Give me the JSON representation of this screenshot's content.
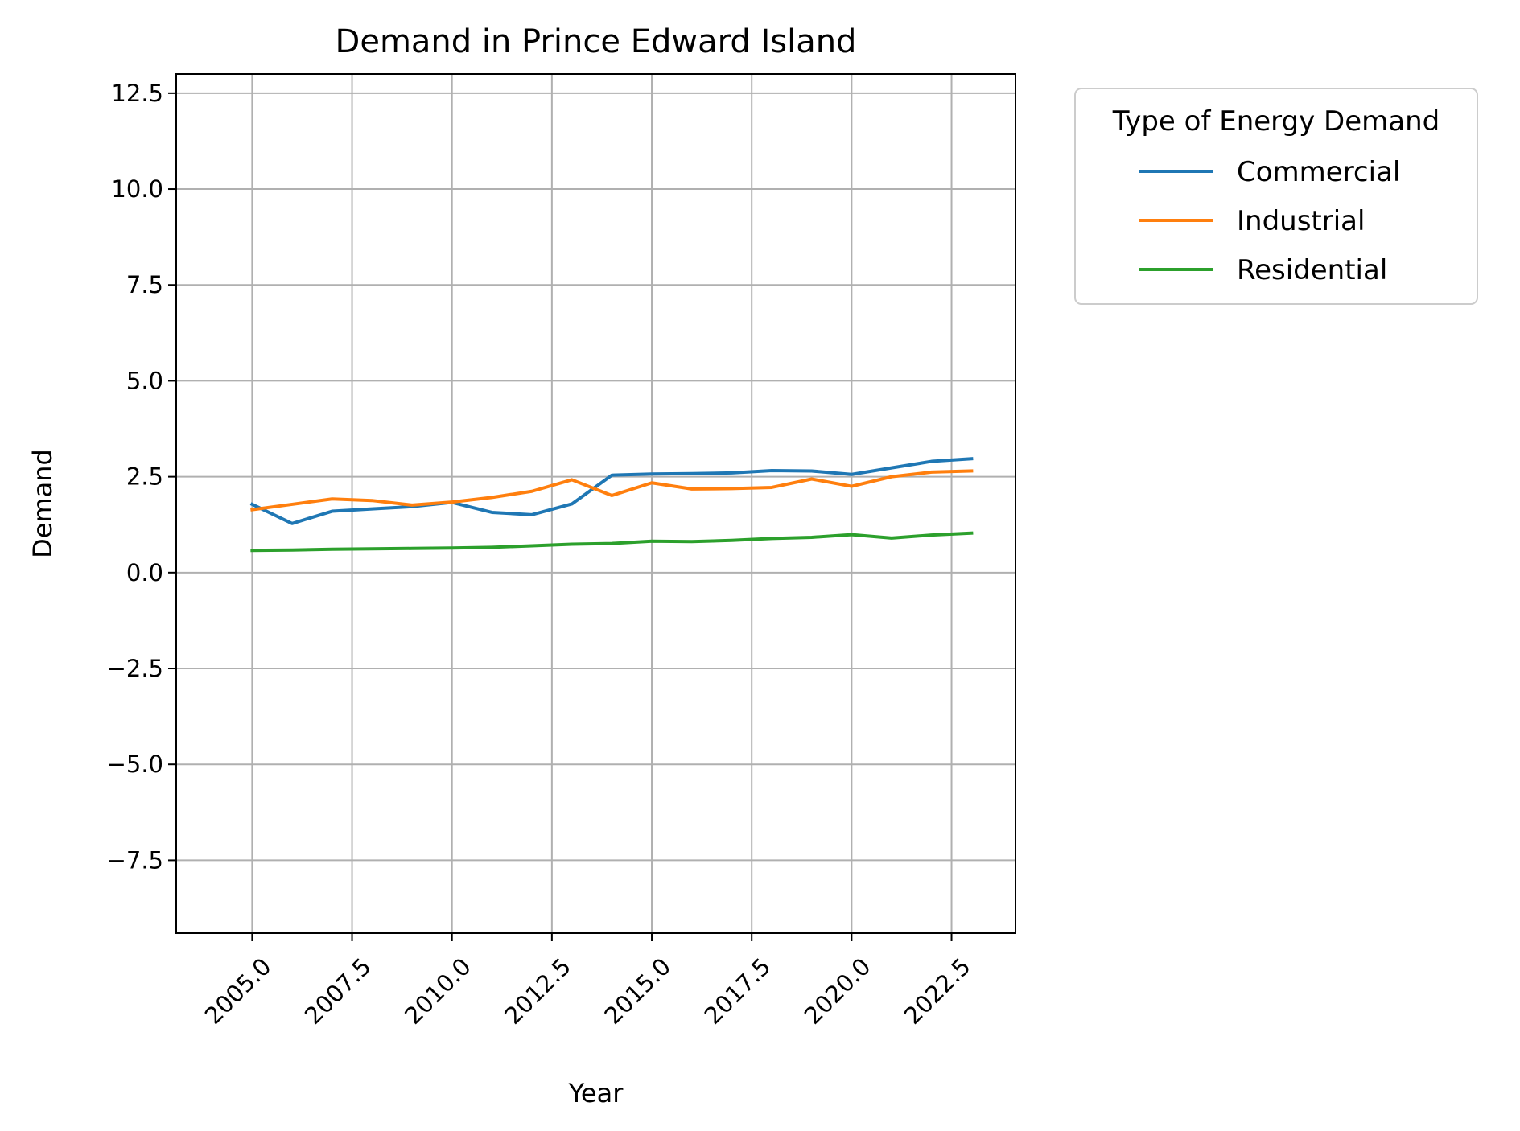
{
  "chart_data": {
    "type": "line",
    "title": "Demand in Prince Edward Island",
    "xlabel": "Year",
    "ylabel": "Demand",
    "xlim": [
      2003.1,
      2024.1
    ],
    "ylim": [
      -9.4,
      13.0
    ],
    "x_ticks": [
      2005.0,
      2007.5,
      2010.0,
      2012.5,
      2015.0,
      2017.5,
      2020.0,
      2022.5
    ],
    "x_tick_labels": [
      "2005.0",
      "2007.5",
      "2010.0",
      "2012.5",
      "2015.0",
      "2017.5",
      "2020.0",
      "2022.5"
    ],
    "y_ticks": [
      -7.5,
      -5.0,
      -2.5,
      0.0,
      2.5,
      5.0,
      7.5,
      10.0,
      12.5
    ],
    "y_tick_labels": [
      "−7.5",
      "−5.0",
      "−2.5",
      "0.0",
      "2.5",
      "5.0",
      "7.5",
      "10.0",
      "12.5"
    ],
    "grid": true,
    "legend_title": "Type of Energy Demand",
    "legend_position": "outside-top-right",
    "x": [
      2005,
      2006,
      2007,
      2008,
      2009,
      2010,
      2011,
      2012,
      2013,
      2014,
      2015,
      2016,
      2017,
      2018,
      2019,
      2020,
      2021,
      2022,
      2023
    ],
    "series": [
      {
        "name": "Commercial",
        "color": "#1f77b4",
        "values": [
          1.78,
          1.28,
          1.6,
          1.66,
          1.72,
          1.83,
          1.57,
          1.51,
          1.79,
          2.54,
          2.57,
          2.58,
          2.6,
          2.66,
          2.65,
          2.56,
          2.73,
          2.9,
          2.97
        ]
      },
      {
        "name": "Industrial",
        "color": "#ff7f0e",
        "values": [
          1.64,
          1.78,
          1.92,
          1.88,
          1.76,
          1.84,
          1.96,
          2.12,
          2.42,
          2.01,
          2.34,
          2.18,
          2.19,
          2.22,
          2.44,
          2.25,
          2.5,
          2.62,
          2.65
        ]
      },
      {
        "name": "Residential",
        "color": "#2ca02c",
        "values": [
          0.58,
          0.59,
          0.61,
          0.62,
          0.63,
          0.64,
          0.66,
          0.7,
          0.74,
          0.76,
          0.82,
          0.81,
          0.84,
          0.89,
          0.92,
          0.99,
          0.9,
          0.98,
          1.03
        ]
      }
    ]
  }
}
